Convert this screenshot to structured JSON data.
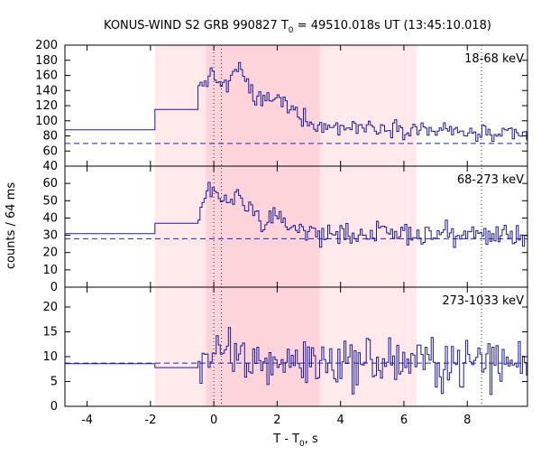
{
  "chart_data": {
    "type": "line",
    "title": "KONUS-WIND S2 GRB 990827 T",
    "title_sub": "0",
    "title_rest": " = 49510.018s UT (13:45:10.018)",
    "xlabel": "T - T",
    "xlabel_sub": "0",
    "xlabel_rest": ", s",
    "ylabel": "counts / 64 ms",
    "xlim": [
      -4.7,
      9.9
    ],
    "x_ticks": [
      -4,
      -2,
      0,
      2,
      4,
      6,
      8
    ],
    "shaded_outer": [
      -1.86,
      6.4
    ],
    "shaded_inner": [
      -0.25,
      3.35
    ],
    "vlines_dotted": [
      0.0,
      0.24,
      8.45
    ],
    "panels": [
      {
        "label": "18-68 keV",
        "ylim": [
          40,
          200
        ],
        "y_ticks": [
          40,
          60,
          80,
          100,
          120,
          140,
          160,
          180,
          200
        ],
        "background": 70,
        "pre_steps": [
          {
            "x0": -4.7,
            "x1": -1.86,
            "y": 88
          },
          {
            "x0": -1.86,
            "x1": -0.5,
            "y": 115
          }
        ],
        "segments": [
          {
            "x0": -0.5,
            "x1": 0.4,
            "y_start": 143,
            "y_peak": 160,
            "y_end": 145
          },
          {
            "x0": 0.4,
            "x1": 1.3,
            "y_start": 145,
            "y_peak": 172,
            "y_end": 128
          },
          {
            "x0": 1.3,
            "x1": 3.3,
            "y_start": 128,
            "y_peak": 128,
            "y_end": 92
          },
          {
            "x0": 3.3,
            "x1": 9.9,
            "y_start": 92,
            "y_peak": 92,
            "y_end": 78
          }
        ],
        "noise": 8
      },
      {
        "label": "68-273 keV",
        "ylim": [
          0,
          70
        ],
        "y_ticks": [
          0,
          10,
          20,
          30,
          40,
          50,
          60
        ],
        "background": 28,
        "pre_steps": [
          {
            "x0": -4.7,
            "x1": -1.86,
            "y": 31
          },
          {
            "x0": -1.86,
            "x1": -0.5,
            "y": 37
          }
        ],
        "segments": [
          {
            "x0": -0.5,
            "x1": 0.4,
            "y_start": 40,
            "y_peak": 58,
            "y_end": 48
          },
          {
            "x0": 0.4,
            "x1": 1.5,
            "y_start": 48,
            "y_peak": 52,
            "y_end": 38
          },
          {
            "x0": 1.5,
            "x1": 3.3,
            "y_start": 38,
            "y_peak": 38,
            "y_end": 30
          },
          {
            "x0": 3.3,
            "x1": 9.9,
            "y_start": 31,
            "y_peak": 31,
            "y_end": 30
          }
        ],
        "noise": 4.5
      },
      {
        "label": "273-1033 keV",
        "ylim": [
          0,
          24
        ],
        "y_ticks": [
          0,
          5,
          10,
          15,
          20
        ],
        "background": 8.7,
        "pre_steps": [
          {
            "x0": -4.7,
            "x1": -1.86,
            "y": 8.6
          },
          {
            "x0": -1.86,
            "x1": -0.5,
            "y": 7.8
          }
        ],
        "segments": [
          {
            "x0": -0.5,
            "x1": 1.5,
            "y_start": 9,
            "y_peak": 10,
            "y_end": 9
          },
          {
            "x0": 1.5,
            "x1": 9.9,
            "y_start": 9,
            "y_peak": 9,
            "y_end": 8.8
          }
        ],
        "noise": 3.6
      }
    ]
  }
}
